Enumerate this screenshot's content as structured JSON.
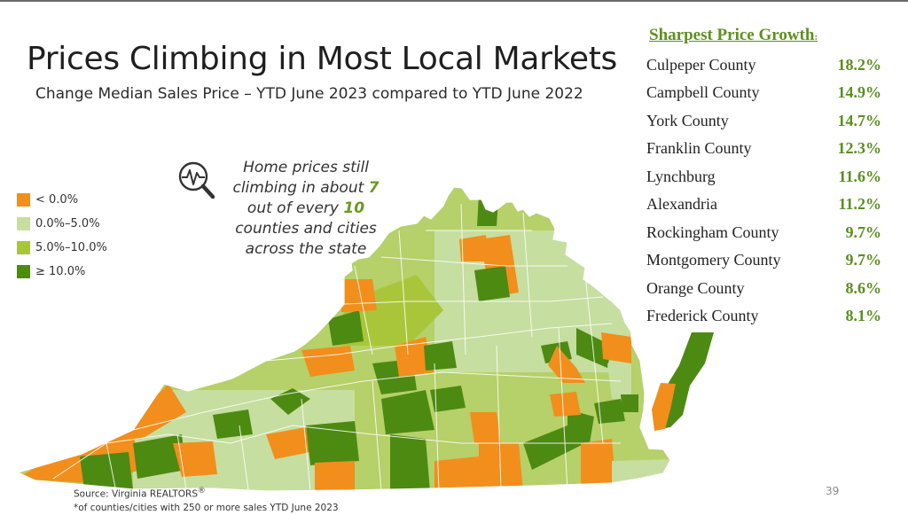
{
  "title": "Prices Climbing in Most Local Markets",
  "subtitle": "Change Median Sales Price – YTD June 2023 compared to YTD June 2022",
  "legend": [
    {
      "label": "< 0.0%",
      "color": "#f28e1c"
    },
    {
      "label": "0.0%–5.0%",
      "color": "#c6dea0"
    },
    {
      "label": "5.0%–10.0%",
      "color": "#a9c63a"
    },
    {
      "label": "≥ 10.0%",
      "color": "#4d8a12"
    }
  ],
  "callout": {
    "icon": "magnifier-pulse-icon",
    "part1": "Home prices still climbing in about ",
    "num1": "7",
    "part2": " out of every ",
    "num2": "10",
    "part3": " counties and cities across the state"
  },
  "growth": {
    "heading": "Sharpest Price Growth",
    "heading_suffix": ":",
    "rows": [
      {
        "name": "Culpeper County",
        "value": "18.2%"
      },
      {
        "name": "Campbell County",
        "value": "14.9%"
      },
      {
        "name": "York County",
        "value": "14.7%"
      },
      {
        "name": "Franklin County",
        "value": "12.3%"
      },
      {
        "name": "Lynchburg",
        "value": "11.6%"
      },
      {
        "name": "Alexandria",
        "value": "11.2%"
      },
      {
        "name": "Rockingham County",
        "value": "9.7%"
      },
      {
        "name": "Montgomery County",
        "value": "9.7%"
      },
      {
        "name": "Orange County",
        "value": "8.6%"
      },
      {
        "name": "Frederick County",
        "value": "8.1%"
      }
    ]
  },
  "source": {
    "line1": "Source: Virginia REALTORS",
    "reg": "®",
    "line2": "*of counties/cities with 250 or more sales YTD June 2023"
  },
  "page_number": "39"
}
